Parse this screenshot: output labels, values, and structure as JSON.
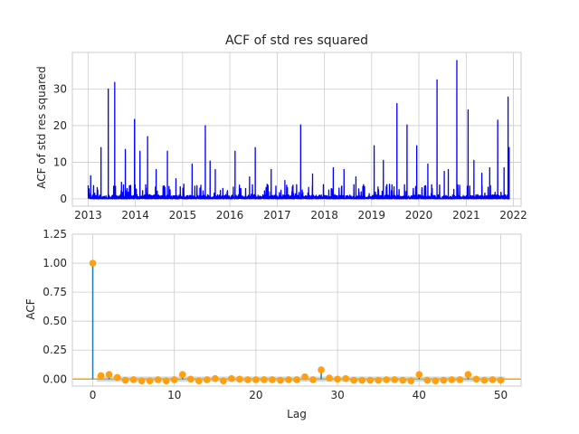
{
  "chart_data": [
    {
      "type": "line",
      "title": "ACF of std res squared",
      "xlabel": "",
      "ylabel": "ACF of std res squared",
      "x_ticks": [
        "2013",
        "2014",
        "2015",
        "2016",
        "2017",
        "2018",
        "2019",
        "2020",
        "2021",
        "2022"
      ],
      "y_ticks": [
        0,
        10,
        20,
        30
      ],
      "xlim": [
        "2012-09-01",
        "2022-03-01"
      ],
      "ylim": [
        -2,
        40
      ],
      "grid": true,
      "color": "#0000ff",
      "x_start": "2013-01-01",
      "x_end": "2021-11-30",
      "series": [
        {
          "peaks": [
            {
              "x": "2013-01-20",
              "y": 6.3
            },
            {
              "x": "2013-02-20",
              "y": 1.5
            },
            {
              "x": "2013-04-10",
              "y": 14.0
            },
            {
              "x": "2013-06-05",
              "y": 30.0
            },
            {
              "x": "2013-07-25",
              "y": 31.8
            },
            {
              "x": "2013-09-15",
              "y": 4.5
            },
            {
              "x": "2013-10-15",
              "y": 13.5
            },
            {
              "x": "2013-12-25",
              "y": 21.7
            },
            {
              "x": "2014-02-05",
              "y": 13.0
            },
            {
              "x": "2014-04-05",
              "y": 17.0
            },
            {
              "x": "2014-06-10",
              "y": 8.0
            },
            {
              "x": "2014-09-05",
              "y": 13.0
            },
            {
              "x": "2014-11-10",
              "y": 5.5
            },
            {
              "x": "2015-01-10",
              "y": 4.0
            },
            {
              "x": "2015-03-15",
              "y": 9.5
            },
            {
              "x": "2015-06-25",
              "y": 20.0
            },
            {
              "x": "2015-08-01",
              "y": 10.3
            },
            {
              "x": "2015-09-10",
              "y": 8.0
            },
            {
              "x": "2016-02-10",
              "y": 13.0
            },
            {
              "x": "2016-06-01",
              "y": 6.0
            },
            {
              "x": "2016-07-15",
              "y": 14.0
            },
            {
              "x": "2016-11-15",
              "y": 8.0
            },
            {
              "x": "2017-03-01",
              "y": 5.0
            },
            {
              "x": "2017-07-01",
              "y": 20.2
            },
            {
              "x": "2017-10-01",
              "y": 6.8
            },
            {
              "x": "2018-03-10",
              "y": 8.5
            },
            {
              "x": "2018-06-01",
              "y": 8.0
            },
            {
              "x": "2018-09-01",
              "y": 6.0
            },
            {
              "x": "2019-01-20",
              "y": 14.5
            },
            {
              "x": "2019-04-01",
              "y": 10.5
            },
            {
              "x": "2019-07-15",
              "y": 26.0
            },
            {
              "x": "2019-10-01",
              "y": 20.2
            },
            {
              "x": "2019-12-15",
              "y": 14.5
            },
            {
              "x": "2020-03-10",
              "y": 9.5
            },
            {
              "x": "2020-05-20",
              "y": 32.5
            },
            {
              "x": "2020-07-15",
              "y": 7.5
            },
            {
              "x": "2020-08-15",
              "y": 8.0
            },
            {
              "x": "2020-10-20",
              "y": 37.8
            },
            {
              "x": "2021-01-15",
              "y": 24.3
            },
            {
              "x": "2021-03-01",
              "y": 10.5
            },
            {
              "x": "2021-05-01",
              "y": 7.0
            },
            {
              "x": "2021-07-01",
              "y": 8.5
            },
            {
              "x": "2021-09-01",
              "y": 21.5
            },
            {
              "x": "2021-10-20",
              "y": 8.5
            },
            {
              "x": "2021-11-20",
              "y": 27.8
            },
            {
              "x": "2021-11-28",
              "y": 14.0
            }
          ],
          "baseline_max": 4
        }
      ]
    },
    {
      "type": "scatter",
      "title": "",
      "xlabel": "Lag",
      "ylabel": "ACF",
      "x_ticks": [
        0,
        10,
        20,
        30,
        40,
        50
      ],
      "y_ticks": [
        "0.00",
        "0.25",
        "0.50",
        "0.75",
        "1.00",
        "1.25"
      ],
      "xlim": [
        -2.5,
        52.5
      ],
      "ylim": [
        -0.06,
        1.25
      ],
      "grid": true,
      "marker_color": "#ff9f0e",
      "stem_color": "#1f77b4",
      "conf_band": 0.022,
      "conf_color": "#b7d4e3",
      "series": [
        {
          "x": [
            0,
            1,
            2,
            3,
            4,
            5,
            6,
            7,
            8,
            9,
            10,
            11,
            12,
            13,
            14,
            15,
            16,
            17,
            18,
            19,
            20,
            21,
            22,
            23,
            24,
            25,
            26,
            27,
            28,
            29,
            30,
            31,
            32,
            33,
            34,
            35,
            36,
            37,
            38,
            39,
            40,
            41,
            42,
            43,
            44,
            45,
            46,
            47,
            48,
            49,
            50
          ],
          "y": [
            1.0,
            0.03,
            0.04,
            0.015,
            -0.01,
            -0.005,
            -0.015,
            -0.015,
            -0.005,
            -0.015,
            -0.005,
            0.04,
            0.0,
            -0.015,
            -0.005,
            0.005,
            -0.015,
            0.005,
            0.0,
            -0.005,
            -0.005,
            -0.005,
            -0.005,
            -0.01,
            -0.005,
            -0.005,
            0.02,
            -0.005,
            0.08,
            0.01,
            0.0,
            0.005,
            -0.01,
            -0.01,
            -0.01,
            -0.01,
            -0.005,
            -0.005,
            -0.01,
            -0.015,
            0.04,
            -0.01,
            -0.015,
            -0.01,
            -0.005,
            -0.005,
            0.04,
            0.0,
            -0.01,
            -0.005,
            -0.01
          ]
        }
      ]
    }
  ]
}
